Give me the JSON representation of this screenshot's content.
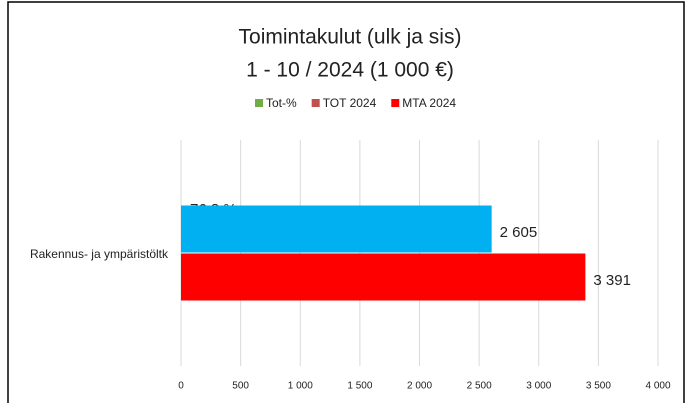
{
  "chart_data": {
    "type": "hbar",
    "title": "Toimintakulut (ulk ja sis)",
    "subtitle": "1 - 10 / 2024 (1 000 €)",
    "categories": [
      "Rakennus- ja ympäristöltk"
    ],
    "series": [
      {
        "name": "Tot-%",
        "color": "#70ad47",
        "values": [
          76.8
        ],
        "value_labels": [
          "76,8 %"
        ]
      },
      {
        "name": "TOT 2024",
        "color": "#00b0f0",
        "legend_color": "#c0504d",
        "values": [
          2605
        ],
        "value_labels": [
          "2 605"
        ]
      },
      {
        "name": "MTA 2024",
        "color": "#ff0000",
        "values": [
          3391
        ],
        "value_labels": [
          "3 391"
        ]
      }
    ],
    "xlim": [
      0,
      4000
    ],
    "xticks": [
      0,
      500,
      {
        "value": 1000,
        "label": "1 000"
      },
      {
        "value": 1500,
        "label": "1 500"
      },
      {
        "value": 2000,
        "label": "2 000"
      },
      {
        "value": 2500,
        "label": "2 500"
      },
      {
        "value": 3000,
        "label": "3 000"
      },
      {
        "value": 3500,
        "label": "3 500"
      },
      {
        "value": 4000,
        "label": "4 000"
      }
    ],
    "grid": true,
    "legend": "top"
  }
}
